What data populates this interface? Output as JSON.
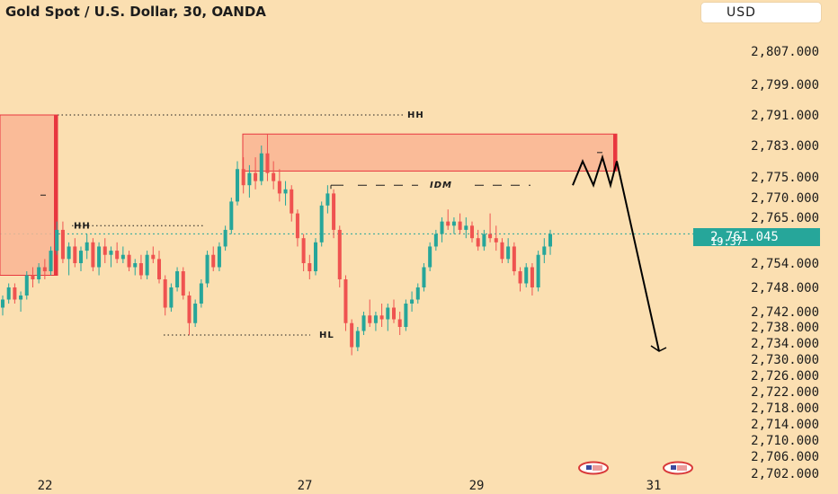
{
  "header": {
    "title": "Gold Spot / U.S. Dollar, 30, OANDA",
    "currency_button": "USD"
  },
  "colors": {
    "background": "#fbdfb1",
    "up_candle": "#26a69a",
    "down_candle": "#ef5350",
    "zone_fill": "#f9b594",
    "zone_border": "#e8373f",
    "price_line": "#26a69a",
    "projection": "#000000"
  },
  "chart_data": {
    "type": "candlestick",
    "symbol": "XAUUSD",
    "timeframe": "30",
    "source": "OANDA",
    "price_axis": {
      "ticks": [
        "2,807.000",
        "2,799.000",
        "2,791.000",
        "2,783.000",
        "2,775.000",
        "2,770.000",
        "2,765.000",
        "2,754.000",
        "2,748.000",
        "2,742.000",
        "2,738.000",
        "2,734.000",
        "2,730.000",
        "2,726.000",
        "2,722.000",
        "2,718.000",
        "2,714.000",
        "2,710.000",
        "2,706.000",
        "2,702.000"
      ]
    },
    "date_axis": {
      "ticks": [
        "22",
        "27",
        "29",
        "31"
      ]
    },
    "current_price": {
      "value": "2,761.045",
      "countdown": "19:37"
    },
    "zones": [
      {
        "name": "left-supply-zone",
        "kind": "supply",
        "top": 2791,
        "bottom": 2751,
        "has_midline": true
      },
      {
        "name": "upper-supply-zone",
        "kind": "supply",
        "top": 2786,
        "bottom": 2776.5,
        "has_midline": true
      }
    ],
    "levels": [
      {
        "label": "HH",
        "price": 2791,
        "style": "dotted"
      },
      {
        "label": "HH",
        "price": 2763,
        "style": "dotted"
      },
      {
        "label": "HL",
        "price": 2736,
        "style": "dotted"
      },
      {
        "label": "IDM",
        "price": 2773,
        "style": "dashed"
      }
    ],
    "candles": [
      [
        2743,
        2746,
        2741,
        2745
      ],
      [
        2745,
        2749,
        2744,
        2748
      ],
      [
        2748,
        2749,
        2744,
        2745
      ],
      [
        2745,
        2747,
        2742,
        2746
      ],
      [
        2746,
        2752,
        2745,
        2751
      ],
      [
        2751,
        2753,
        2748,
        2750
      ],
      [
        2750,
        2754,
        2749,
        2753
      ],
      [
        2753,
        2755,
        2750,
        2752
      ],
      [
        2752,
        2758,
        2751,
        2757
      ],
      [
        2757,
        2764,
        2756,
        2762
      ],
      [
        2762,
        2764,
        2754,
        2755
      ],
      [
        2755,
        2759,
        2751,
        2758
      ],
      [
        2758,
        2760,
        2753,
        2754
      ],
      [
        2754,
        2758,
        2752,
        2757
      ],
      [
        2757,
        2761,
        2755,
        2759
      ],
      [
        2759,
        2760,
        2752,
        2753
      ],
      [
        2753,
        2759,
        2751,
        2758
      ],
      [
        2758,
        2760,
        2754,
        2756
      ],
      [
        2756,
        2758,
        2753,
        2757
      ],
      [
        2757,
        2759,
        2754,
        2755
      ],
      [
        2755,
        2758,
        2754,
        2756
      ],
      [
        2756,
        2757,
        2752,
        2753
      ],
      [
        2753,
        2755,
        2751,
        2754
      ],
      [
        2754,
        2756,
        2750,
        2751
      ],
      [
        2751,
        2757,
        2750,
        2756
      ],
      [
        2756,
        2758,
        2754,
        2755
      ],
      [
        2755,
        2757,
        2749,
        2750
      ],
      [
        2750,
        2751,
        2741,
        2743
      ],
      [
        2743,
        2749,
        2742,
        2748
      ],
      [
        2748,
        2753,
        2747,
        2752
      ],
      [
        2752,
        2753,
        2745,
        2746
      ],
      [
        2746,
        2747,
        2736,
        2739
      ],
      [
        2739,
        2745,
        2738,
        2744
      ],
      [
        2744,
        2750,
        2743,
        2749
      ],
      [
        2749,
        2757,
        2748,
        2756
      ],
      [
        2756,
        2758,
        2752,
        2753
      ],
      [
        2753,
        2759,
        2752,
        2758
      ],
      [
        2758,
        2763,
        2757,
        2762
      ],
      [
        2762,
        2770,
        2761,
        2769
      ],
      [
        2769,
        2779,
        2768,
        2777
      ],
      [
        2777,
        2780,
        2771,
        2773
      ],
      [
        2773,
        2778,
        2770,
        2776
      ],
      [
        2776,
        2780,
        2772,
        2774
      ],
      [
        2774,
        2783,
        2773,
        2781
      ],
      [
        2781,
        2786,
        2774,
        2776
      ],
      [
        2776,
        2779,
        2772,
        2774
      ],
      [
        2774,
        2777,
        2769,
        2771
      ],
      [
        2771,
        2774,
        2768,
        2772
      ],
      [
        2772,
        2773,
        2764,
        2766
      ],
      [
        2766,
        2767,
        2758,
        2760
      ],
      [
        2760,
        2761,
        2752,
        2754
      ],
      [
        2754,
        2756,
        2750,
        2752
      ],
      [
        2752,
        2760,
        2751,
        2759
      ],
      [
        2759,
        2769,
        2758,
        2768
      ],
      [
        2768,
        2773,
        2766,
        2771
      ],
      [
        2771,
        2772,
        2760,
        2762
      ],
      [
        2762,
        2763,
        2748,
        2750
      ],
      [
        2750,
        2751,
        2737,
        2739
      ],
      [
        2739,
        2740,
        2731,
        2733
      ],
      [
        2733,
        2738,
        2732,
        2737
      ],
      [
        2737,
        2742,
        2736,
        2741
      ],
      [
        2741,
        2745,
        2738,
        2739
      ],
      [
        2739,
        2742,
        2737,
        2741
      ],
      [
        2741,
        2744,
        2738,
        2740
      ],
      [
        2740,
        2744,
        2737,
        2743
      ],
      [
        2743,
        2745,
        2739,
        2740
      ],
      [
        2740,
        2742,
        2736,
        2738
      ],
      [
        2738,
        2745,
        2737,
        2744
      ],
      [
        2744,
        2747,
        2742,
        2745
      ],
      [
        2745,
        2749,
        2744,
        2748
      ],
      [
        2748,
        2754,
        2747,
        2753
      ],
      [
        2753,
        2759,
        2752,
        2758
      ],
      [
        2758,
        2762,
        2757,
        2761
      ],
      [
        2761,
        2765,
        2759,
        2764
      ],
      [
        2764,
        2767,
        2762,
        2763
      ],
      [
        2763,
        2765,
        2761,
        2764
      ],
      [
        2764,
        2766,
        2761,
        2762
      ],
      [
        2762,
        2765,
        2760,
        2763
      ],
      [
        2763,
        2764,
        2759,
        2760
      ],
      [
        2760,
        2762,
        2757,
        2758
      ],
      [
        2758,
        2762,
        2757,
        2761
      ],
      [
        2761,
        2766,
        2759,
        2760
      ],
      [
        2760,
        2763,
        2757,
        2759
      ],
      [
        2759,
        2760,
        2754,
        2755
      ],
      [
        2755,
        2760,
        2754,
        2758
      ],
      [
        2758,
        2759,
        2751,
        2752
      ],
      [
        2752,
        2753,
        2747,
        2749
      ],
      [
        2749,
        2754,
        2748,
        2753
      ],
      [
        2753,
        2754,
        2746,
        2748
      ],
      [
        2748,
        2757,
        2747,
        2756
      ],
      [
        2756,
        2760,
        2754,
        2758
      ],
      [
        2758,
        2762,
        2756,
        2761
      ]
    ],
    "projection": {
      "description_points": [
        2773,
        2779,
        2773,
        2780,
        2773,
        2779,
        2732
      ]
    }
  }
}
